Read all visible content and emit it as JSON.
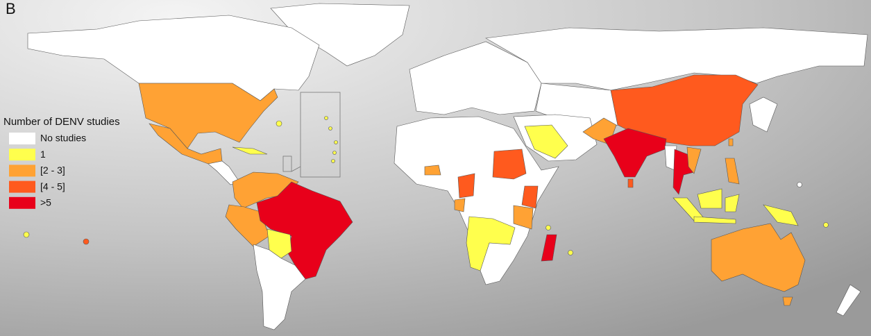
{
  "panel_label": "B",
  "legend": {
    "title": "Number of DENV studies",
    "items": [
      {
        "label": "No studies",
        "color": "#ffffff"
      },
      {
        "label": "1",
        "color": "#ffff4d"
      },
      {
        "label": "[2 - 3]",
        "color": "#ffa234"
      },
      {
        "label": "[4 - 5]",
        "color": "#ff5a1e"
      },
      {
        "label": ">5",
        "color": "#e8001a"
      }
    ]
  }
}
